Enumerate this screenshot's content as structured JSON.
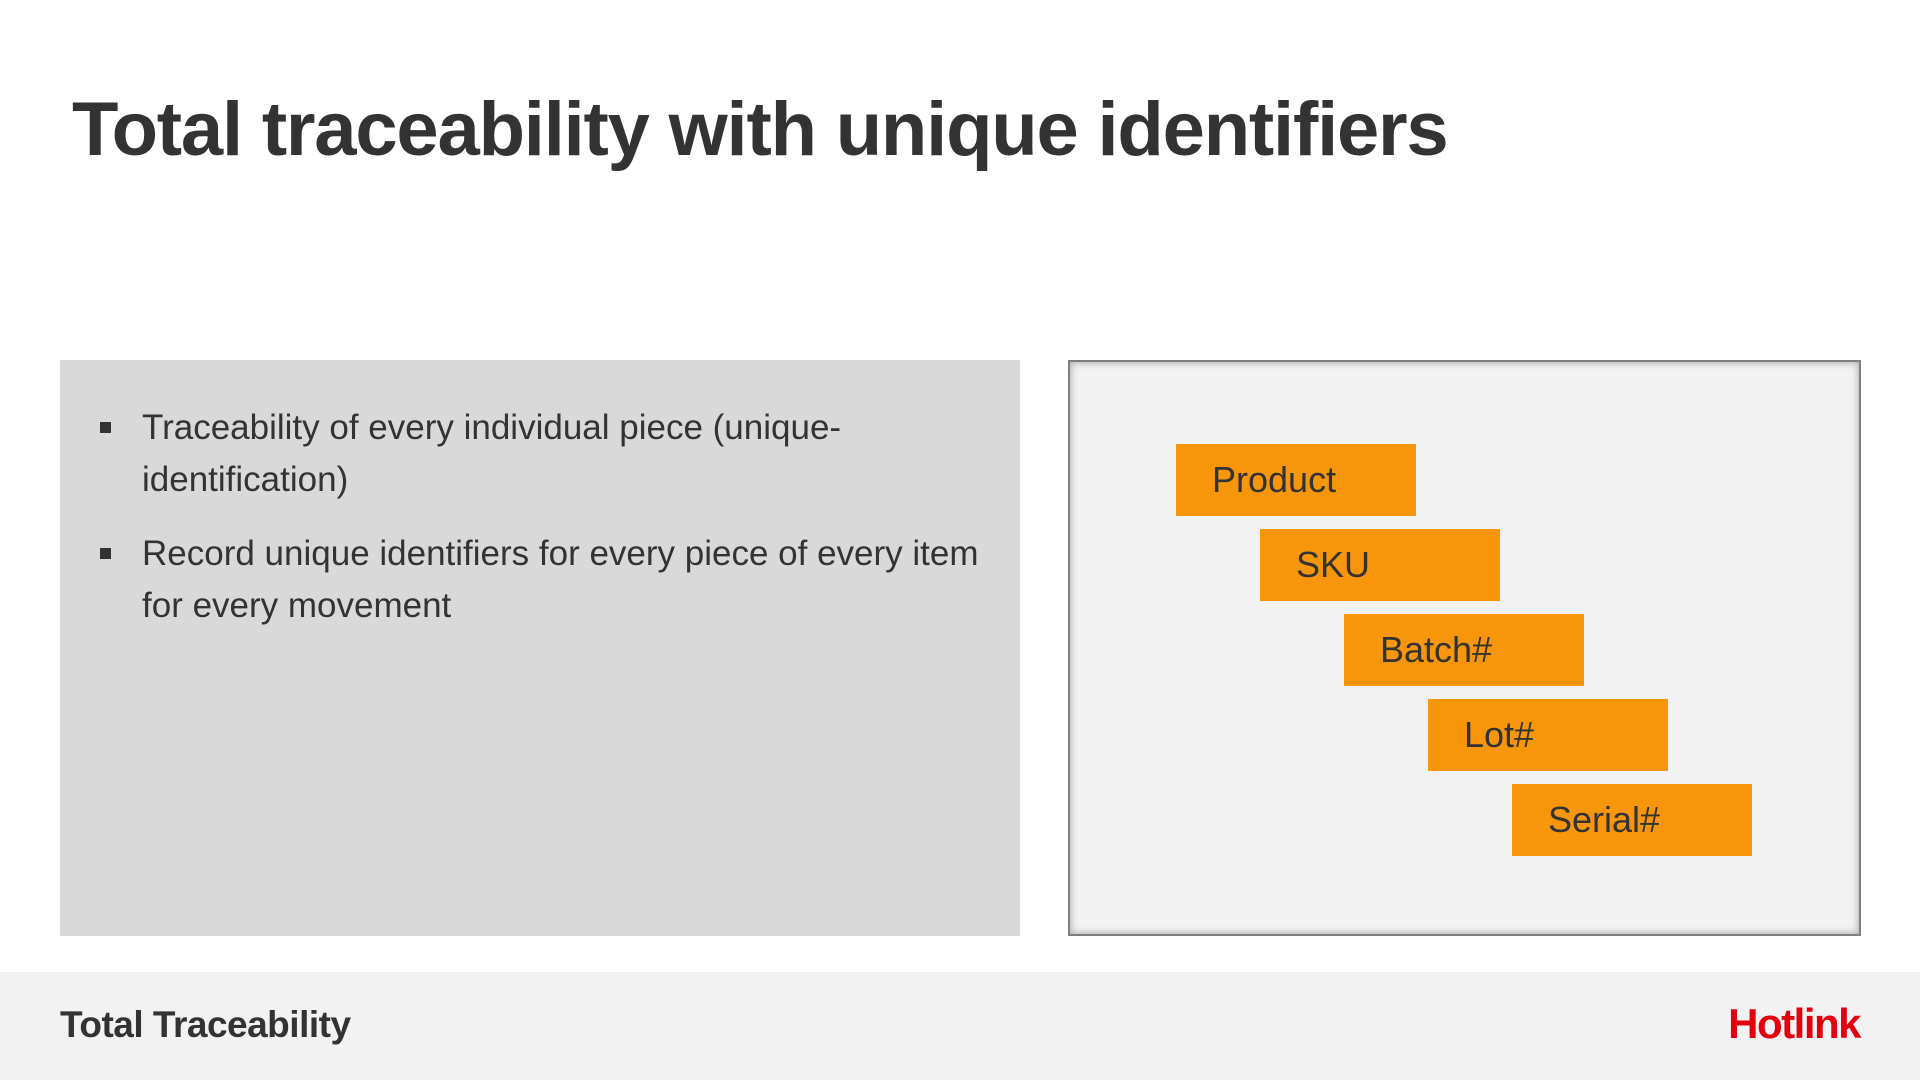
{
  "slide": {
    "title": "Total traceability with unique identifiers"
  },
  "content": {
    "bullets": [
      "Traceability of every individual piece (unique-identification)",
      "Record unique identifiers for every piece of every item for every movement"
    ]
  },
  "hierarchy": {
    "levels": [
      "Product",
      "SKU",
      "Batch#",
      "Lot#",
      "Serial#"
    ],
    "box_color": "#f7960a"
  },
  "footer": {
    "label": "Total Traceability",
    "brand": "Hotlink",
    "brand_color": "#e3000f"
  }
}
